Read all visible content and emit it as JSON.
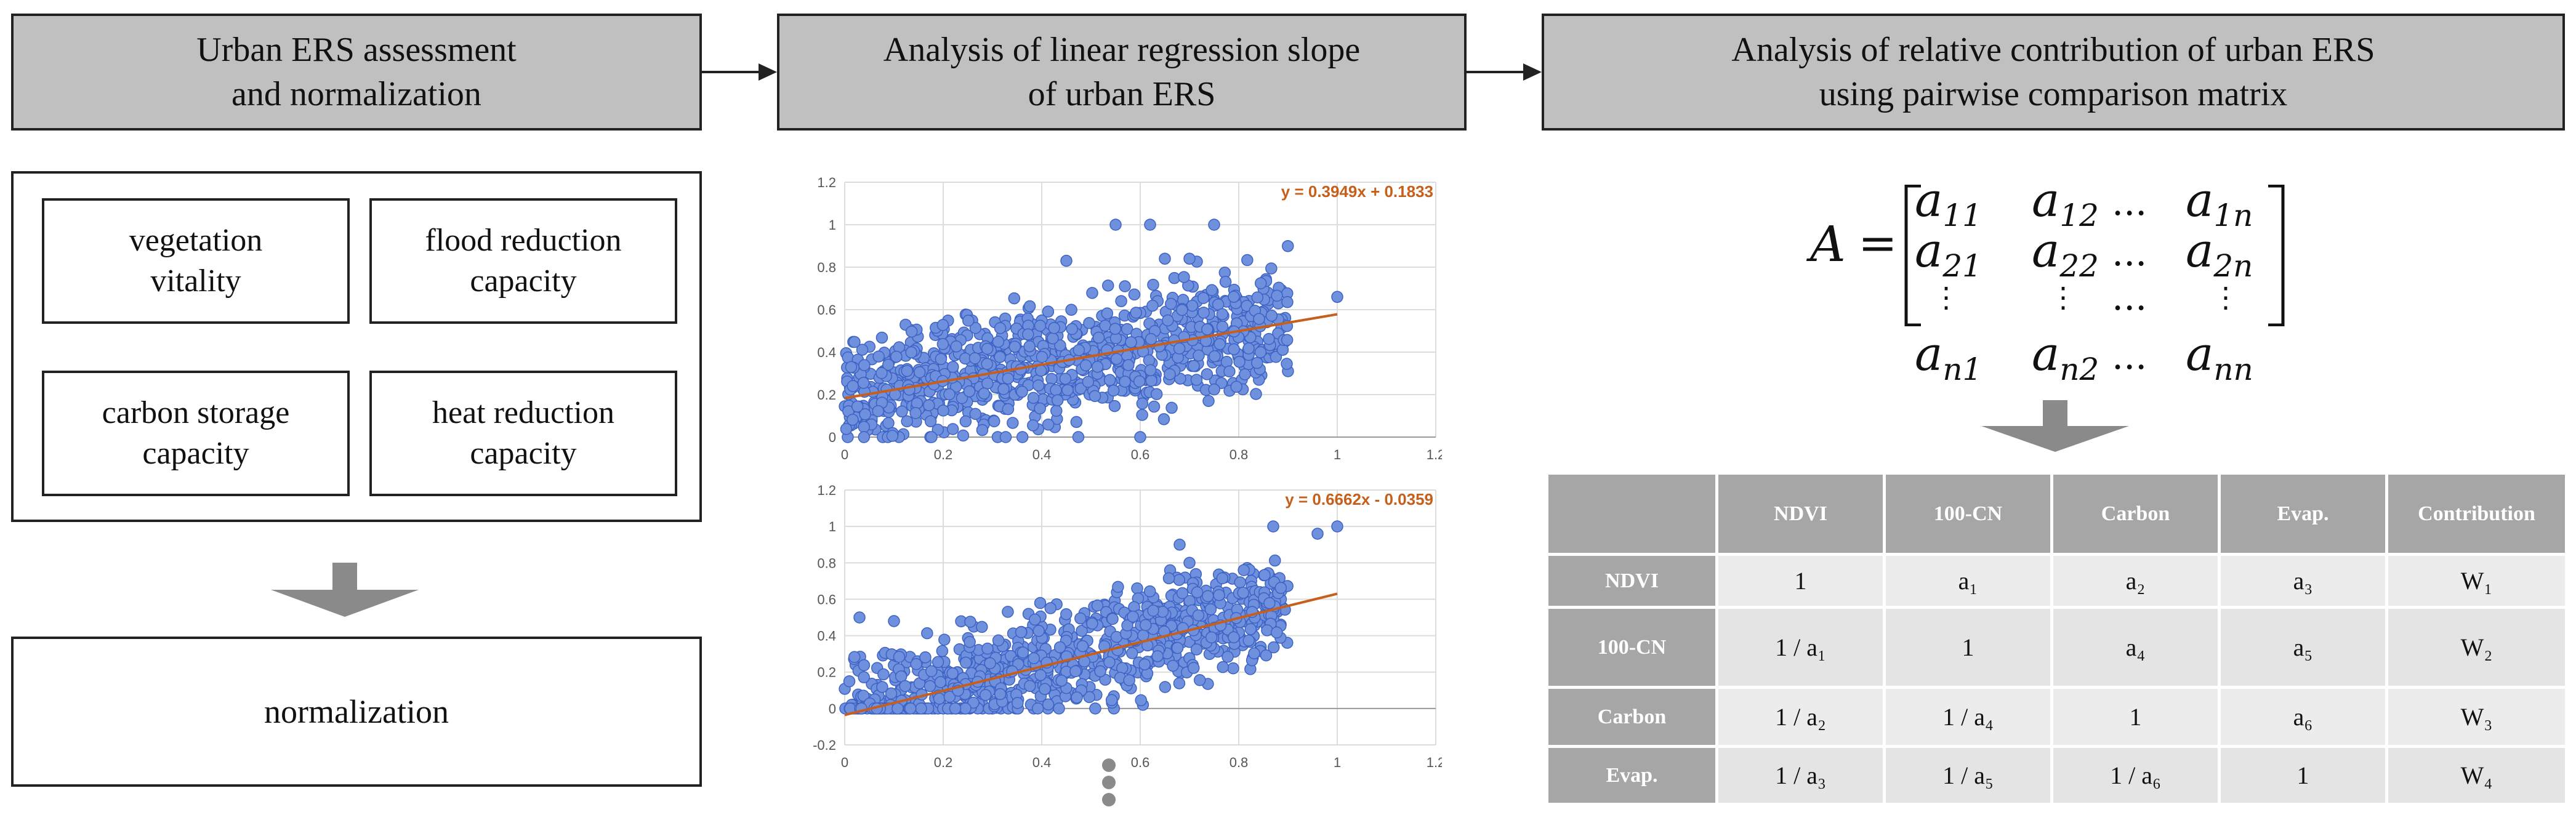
{
  "headers": {
    "h1": "Urban ERS assessment\nand normalization",
    "h2": "Analysis of linear regression slope\nof urban ERS",
    "h3": "Analysis of relative contribution of urban ERS\nusing pairwise comparison matrix"
  },
  "capacities": [
    "vegetation vitality",
    "flood reduction capacity",
    "carbon storage capacity",
    "heat reduction capacity"
  ],
  "normalization_label": "normalization",
  "matrix": {
    "symbol": "A",
    "equals": "=",
    "cells": [
      [
        "a",
        "11"
      ],
      [
        "a",
        "12"
      ],
      [
        "a",
        "1n"
      ],
      [
        "a",
        "21"
      ],
      [
        "a",
        "22"
      ],
      [
        "a",
        "2n"
      ],
      [
        "a",
        "n1"
      ],
      [
        "a",
        "n2"
      ],
      [
        "a",
        "nn"
      ]
    ],
    "hdots": "...",
    "vdots": "⋮"
  },
  "table": {
    "headers": [
      "",
      "NDVI",
      "100-CN",
      "Carbon",
      "Evap.",
      "Contribution"
    ],
    "rows": [
      {
        "label": "NDVI",
        "cells": [
          "1",
          "a₁",
          "a₂",
          "a₃",
          "W₁"
        ]
      },
      {
        "label": "100-CN",
        "cells": [
          "1 / a₁",
          "1",
          "a₄",
          "a₅",
          "W₂"
        ]
      },
      {
        "label": "Carbon",
        "cells": [
          "1 / a₂",
          "1 / a₄",
          "1",
          "a₆",
          "W₃"
        ]
      },
      {
        "label": "Evap.",
        "cells": [
          "1 / a₃",
          "1 / a₅",
          "1 / a₆",
          "1",
          "W₄"
        ]
      }
    ]
  },
  "colors": {
    "header_fill": "#c0c0c0",
    "table_header": "#a6a6a6",
    "table_cell": "#e4e4e4",
    "scatter_point": "#6f90dd",
    "regression_line": "#c65f1c",
    "flow_arrow": "#8a8a8a"
  },
  "chart_data": [
    {
      "type": "scatter",
      "title": "",
      "equation": "y = 0.3949x + 0.1833",
      "slope": 0.3949,
      "intercept": 0.1833,
      "xlim": [
        0,
        1.2
      ],
      "ylim": [
        0,
        1.2
      ],
      "xticks": [
        "0",
        "0.2",
        "0.4",
        "0.6",
        "0.8",
        "1",
        "1.2"
      ],
      "yticks": [
        "0",
        "0.2",
        "0.4",
        "0.6",
        "0.8",
        "1",
        "1.2"
      ],
      "cloud": {
        "x_range": [
          0,
          0.9
        ],
        "noise": 0.2,
        "n_points": 900
      },
      "extra_points": [
        [
          1.0,
          0.66
        ],
        [
          0.55,
          1.0
        ],
        [
          0.62,
          1.0
        ],
        [
          0.75,
          1.0
        ],
        [
          0.45,
          0.83
        ],
        [
          0.65,
          0.84
        ],
        [
          0.7,
          0.84
        ],
        [
          0.6,
          0.0
        ]
      ]
    },
    {
      "type": "scatter",
      "title": "",
      "equation": "y = 0.6662x - 0.0359",
      "slope": 0.6662,
      "intercept": -0.0359,
      "xlim": [
        0,
        1.2
      ],
      "ylim": [
        -0.2,
        1.2
      ],
      "xticks": [
        "0",
        "0.2",
        "0.4",
        "0.6",
        "0.8",
        "1",
        "1.2"
      ],
      "yticks": [
        "-0.2",
        "0",
        "0.2",
        "0.4",
        "0.6",
        "0.8",
        "1",
        "1.2"
      ],
      "cloud": {
        "x_range": [
          0,
          0.9
        ],
        "noise": 0.2,
        "n_points": 900
      },
      "extra_points": [
        [
          1.0,
          1.0
        ],
        [
          0.96,
          0.96
        ],
        [
          0.87,
          1.0
        ],
        [
          0.03,
          0.5
        ],
        [
          0.1,
          0.48
        ],
        [
          0.68,
          0.9
        ],
        [
          0.7,
          0.8
        ]
      ]
    }
  ]
}
